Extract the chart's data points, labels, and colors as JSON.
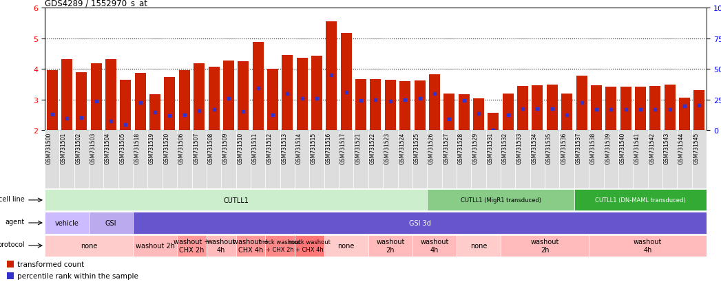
{
  "title": "GDS4289 / 1552970_s_at",
  "samples": [
    "GSM731500",
    "GSM731501",
    "GSM731502",
    "GSM731503",
    "GSM731504",
    "GSM731505",
    "GSM731518",
    "GSM731519",
    "GSM731520",
    "GSM731506",
    "GSM731507",
    "GSM731508",
    "GSM731509",
    "GSM731510",
    "GSM731511",
    "GSM731512",
    "GSM731513",
    "GSM731514",
    "GSM731515",
    "GSM731516",
    "GSM731517",
    "GSM731521",
    "GSM731522",
    "GSM731523",
    "GSM731524",
    "GSM731525",
    "GSM731526",
    "GSM731527",
    "GSM731528",
    "GSM731529",
    "GSM731531",
    "GSM731532",
    "GSM731533",
    "GSM731534",
    "GSM731535",
    "GSM731536",
    "GSM731537",
    "GSM731538",
    "GSM731539",
    "GSM731540",
    "GSM731541",
    "GSM731542",
    "GSM731543",
    "GSM731544",
    "GSM731545"
  ],
  "bar_values": [
    3.97,
    4.32,
    3.89,
    4.2,
    4.32,
    3.64,
    3.88,
    3.17,
    3.75,
    3.97,
    4.2,
    4.07,
    4.27,
    4.25,
    4.88,
    4.0,
    4.47,
    4.37,
    4.43,
    5.55,
    5.17,
    3.67,
    3.68,
    3.65,
    3.6,
    3.63,
    3.83,
    3.2,
    3.17,
    3.04,
    2.57,
    3.2,
    3.45,
    3.48,
    3.5,
    3.2,
    3.78,
    3.47,
    3.42,
    3.42,
    3.42,
    3.45,
    3.5,
    3.06,
    3.32
  ],
  "blue_dot_values": [
    2.52,
    2.4,
    2.42,
    2.95,
    2.3,
    2.18,
    2.9,
    2.6,
    2.48,
    2.5,
    2.65,
    2.68,
    3.05,
    2.62,
    3.38,
    2.5,
    3.2,
    3.05,
    3.05,
    3.8,
    3.25,
    2.98,
    3.0,
    2.95,
    3.0,
    3.05,
    3.2,
    2.38,
    2.98,
    2.55,
    2.0,
    2.5,
    2.7,
    2.7,
    2.7,
    2.5,
    2.9,
    2.68,
    2.68,
    2.68,
    2.68,
    2.68,
    2.68,
    2.8,
    2.82
  ],
  "ylim": [
    2.0,
    6.0
  ],
  "yticks_left": [
    2,
    3,
    4,
    5,
    6
  ],
  "yticks_right": [
    0,
    25,
    50,
    75,
    100
  ],
  "bar_color": "#CC2200",
  "dot_color": "#3333CC",
  "dotted_lines": [
    3.0,
    4.0,
    5.0
  ],
  "cell_line_groups": [
    {
      "label": "CUTLL1",
      "start": 0,
      "end": 26,
      "color": "#CCEECC"
    },
    {
      "label": "CUTLL1 (MigR1 transduced)",
      "start": 26,
      "end": 36,
      "color": "#88CC88"
    },
    {
      "label": "CUTLL1 (DN-MAML transduced)",
      "start": 36,
      "end": 45,
      "color": "#33AA33"
    }
  ],
  "agent_groups": [
    {
      "label": "vehicle",
      "start": 0,
      "end": 3,
      "color": "#CCBBFF"
    },
    {
      "label": "GSI",
      "start": 3,
      "end": 6,
      "color": "#BBAAEE"
    },
    {
      "label": "GSI 3d",
      "start": 6,
      "end": 45,
      "color": "#6655CC"
    }
  ],
  "protocol_groups": [
    {
      "label": "none",
      "start": 0,
      "end": 6,
      "color": "#FFCCCC"
    },
    {
      "label": "washout 2h",
      "start": 6,
      "end": 9,
      "color": "#FFBBBB"
    },
    {
      "label": "washout +\nCHX 2h",
      "start": 9,
      "end": 11,
      "color": "#FF9999"
    },
    {
      "label": "washout\n4h",
      "start": 11,
      "end": 13,
      "color": "#FFBBBB"
    },
    {
      "label": "washout +\nCHX 4h",
      "start": 13,
      "end": 15,
      "color": "#FF9999"
    },
    {
      "label": "mock washout\n+ CHX 2h",
      "start": 15,
      "end": 17,
      "color": "#FF8888"
    },
    {
      "label": "mock washout\n+ CHX 4h",
      "start": 17,
      "end": 19,
      "color": "#FF7777"
    },
    {
      "label": "none",
      "start": 19,
      "end": 22,
      "color": "#FFCCCC"
    },
    {
      "label": "washout\n2h",
      "start": 22,
      "end": 25,
      "color": "#FFBBBB"
    },
    {
      "label": "washout\n4h",
      "start": 25,
      "end": 28,
      "color": "#FFBBBB"
    },
    {
      "label": "none",
      "start": 28,
      "end": 31,
      "color": "#FFCCCC"
    },
    {
      "label": "washout\n2h",
      "start": 31,
      "end": 37,
      "color": "#FFBBBB"
    },
    {
      "label": "washout\n4h",
      "start": 37,
      "end": 45,
      "color": "#FFBBBB"
    }
  ],
  "row_labels": [
    "cell line",
    "agent",
    "protocol"
  ],
  "legend_items": [
    {
      "label": "transformed count",
      "color": "#CC2200"
    },
    {
      "label": "percentile rank within the sample",
      "color": "#3333CC"
    }
  ],
  "xticklabel_bg": "#DDDDDD"
}
